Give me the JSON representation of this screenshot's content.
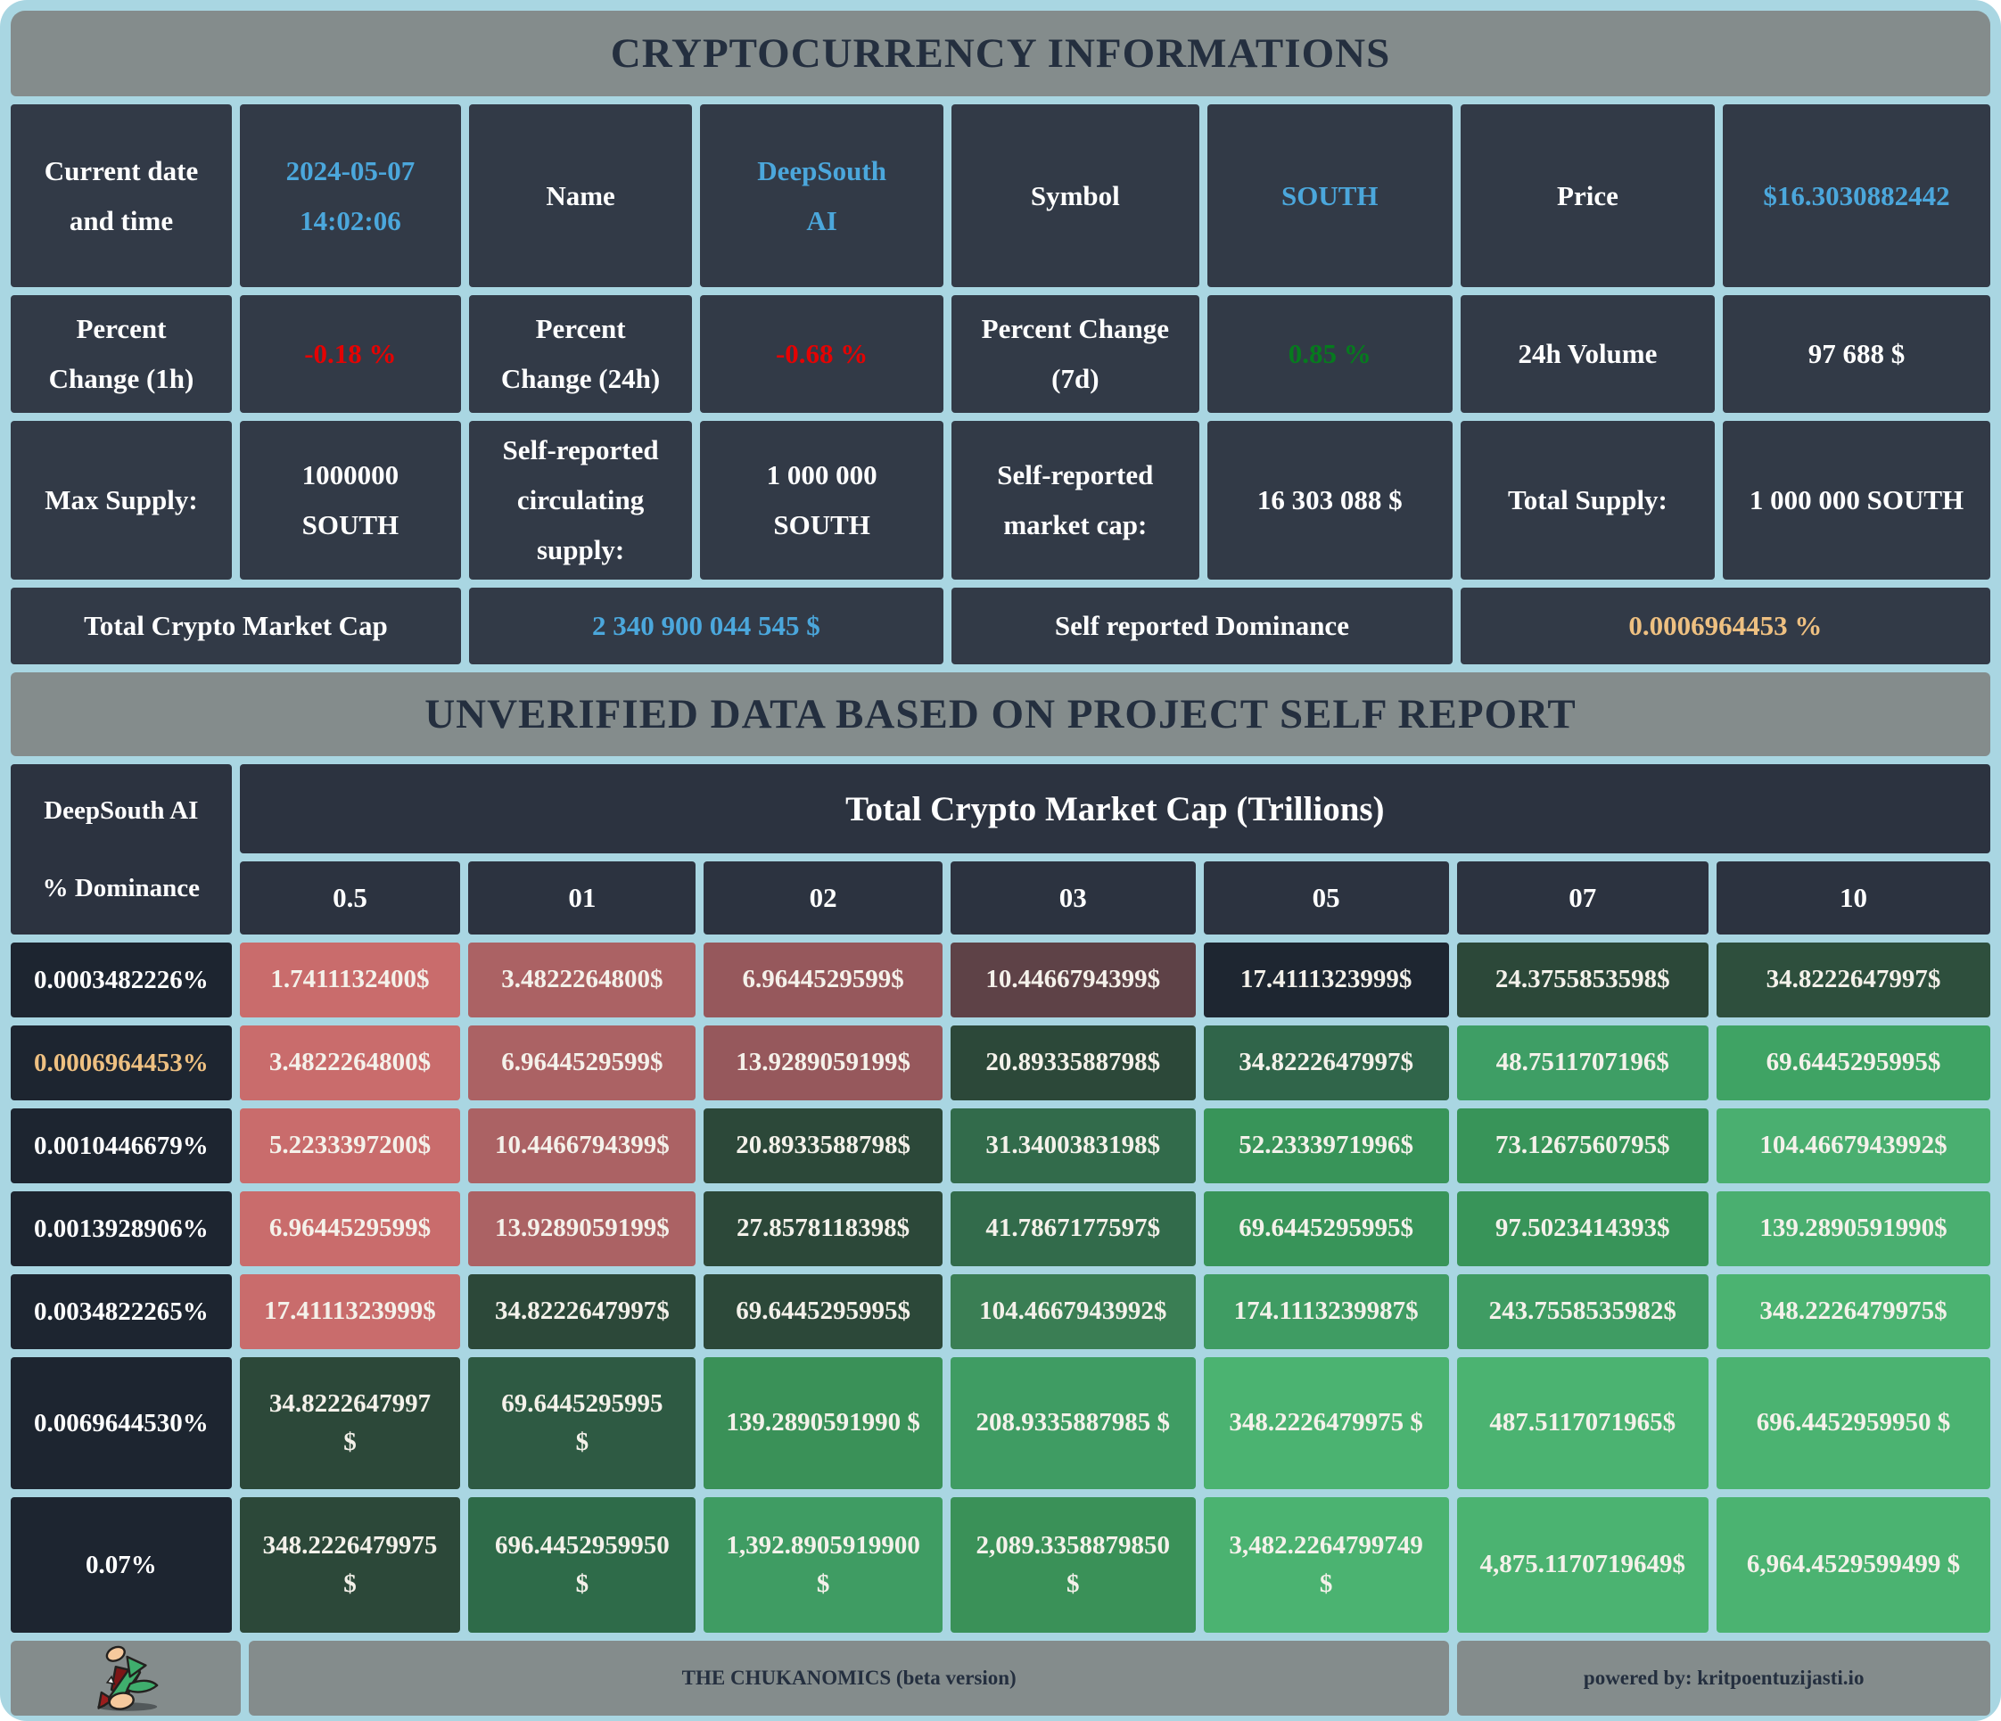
{
  "title": "CRYPTOCURRENCY INFORMATIONS",
  "banner": "UNVERIFIED DATA BASED ON PROJECT SELF REPORT",
  "colors": {
    "frame_border": "#a9d6e2",
    "header_gray": "#848c8c",
    "cell_dark": "#323a47",
    "matrix_label_dark": "#1d2530",
    "accent_blue": "#4ba7dc",
    "negative_red": "#e40303",
    "positive_green": "#067a1e",
    "dominance_orange": "#eec081"
  },
  "info_table": {
    "rows": [
      {
        "cells": [
          {
            "name": "current-datetime-label",
            "text": "Current date and time",
            "style": "label"
          },
          {
            "name": "current-datetime-value",
            "text": "2024-05-07\n14:02:06",
            "style": "blue"
          },
          {
            "name": "name-label",
            "text": "Name",
            "style": "label"
          },
          {
            "name": "name-value",
            "text": "DeepSouth\nAI",
            "style": "blue"
          },
          {
            "name": "symbol-label",
            "text": "Symbol",
            "style": "label"
          },
          {
            "name": "symbol-value",
            "text": "SOUTH",
            "style": "blue"
          },
          {
            "name": "price-label",
            "text": "Price",
            "style": "label"
          },
          {
            "name": "price-value",
            "text": "$16.3030882442",
            "style": "blue"
          }
        ]
      },
      {
        "cells": [
          {
            "name": "pct-1h-label",
            "text": "Percent\nChange (1h)",
            "style": "label"
          },
          {
            "name": "pct-1h-value",
            "text": "-0.18 %",
            "style": "red"
          },
          {
            "name": "pct-24h-label",
            "text": "Percent\nChange (24h)",
            "style": "label"
          },
          {
            "name": "pct-24h-value",
            "text": "-0.68 %",
            "style": "red"
          },
          {
            "name": "pct-7d-label",
            "text": "Percent Change\n(7d)",
            "style": "label"
          },
          {
            "name": "pct-7d-value",
            "text": "0.85 %",
            "style": "green"
          },
          {
            "name": "volume-label",
            "text": "24h Volume",
            "style": "label"
          },
          {
            "name": "volume-value",
            "text": "97 688 $",
            "style": "label"
          }
        ]
      },
      {
        "cells": [
          {
            "name": "max-supply-label",
            "text": "Max Supply:",
            "style": "label"
          },
          {
            "name": "max-supply-value",
            "text": "1000000\nSOUTH",
            "style": "label"
          },
          {
            "name": "circ-supply-label",
            "text": "Self-reported\ncirculating\nsupply:",
            "style": "label"
          },
          {
            "name": "circ-supply-value",
            "text": "1 000 000\nSOUTH",
            "style": "label"
          },
          {
            "name": "self-mcap-label",
            "text": "Self-reported\nmarket cap:",
            "style": "label"
          },
          {
            "name": "self-mcap-value",
            "text": "16 303 088 $",
            "style": "label"
          },
          {
            "name": "total-supply-label",
            "text": "Total Supply:",
            "style": "label"
          },
          {
            "name": "total-supply-value",
            "text": "1 000 000 SOUTH",
            "style": "label"
          }
        ]
      },
      {
        "cells": [
          {
            "name": "total-mcap-label",
            "text": "Total Crypto Market Cap",
            "style": "label",
            "span": 2
          },
          {
            "name": "total-mcap-value",
            "text": "2 340 900 044 545 $",
            "style": "blue",
            "span": 2
          },
          {
            "name": "self-dominance-label",
            "text": "Self reported Dominance",
            "style": "label",
            "span": 2
          },
          {
            "name": "self-dominance-value",
            "text": "0.0006964453 %",
            "style": "orange",
            "span": 2
          }
        ]
      }
    ]
  },
  "matrix": {
    "corner": "DeepSouth AI\n% Dominance",
    "header": "Total Crypto Market Cap (Trillions)",
    "columns": [
      "0.5",
      "01",
      "02",
      "03",
      "05",
      "07",
      "10"
    ],
    "rows": [
      {
        "label": "0.0003482226%",
        "label_color": "#ffffff",
        "cells": [
          {
            "text": "1.7411132400$",
            "bg": "#c96c6c"
          },
          {
            "text": "3.4822264800$",
            "bg": "#ab6264"
          },
          {
            "text": "6.9644529599$",
            "bg": "#96585c"
          },
          {
            "text": "10.4466794399$",
            "bg": "#5e4247"
          },
          {
            "text": "17.4111323999$",
            "bg": "#1e2631"
          },
          {
            "text": "24.3755853598$",
            "bg": "#2c4839"
          },
          {
            "text": "34.8222647997$",
            "bg": "#2e4f3d"
          }
        ]
      },
      {
        "label": "0.0006964453%",
        "label_color": "#eec081",
        "cells": [
          {
            "text": "3.4822264800$",
            "bg": "#c96c6c"
          },
          {
            "text": "6.9644529599$",
            "bg": "#ab6264"
          },
          {
            "text": "13.9289059199$",
            "bg": "#96585c"
          },
          {
            "text": "20.8933588798$",
            "bg": "#2c4839"
          },
          {
            "text": "34.8222647997$",
            "bg": "#30654a"
          },
          {
            "text": "48.7511707196$",
            "bg": "#3e9e65"
          },
          {
            "text": "69.6445295995$",
            "bg": "#3fa364"
          }
        ]
      },
      {
        "label": "0.0010446679%",
        "label_color": "#ffffff",
        "cells": [
          {
            "text": "5.2233397200$",
            "bg": "#c96c6c"
          },
          {
            "text": "10.4466794399$",
            "bg": "#ab6264"
          },
          {
            "text": "20.8933588798$",
            "bg": "#2c4839"
          },
          {
            "text": "31.3400383198$",
            "bg": "#326b4b"
          },
          {
            "text": "52.2333971996$",
            "bg": "#389459"
          },
          {
            "text": "73.1267560795$",
            "bg": "#389459"
          },
          {
            "text": "104.4667943992$",
            "bg": "#4aaf70"
          }
        ]
      },
      {
        "label": "0.0013928906%",
        "label_color": "#ffffff",
        "cells": [
          {
            "text": "6.9644529599$",
            "bg": "#c96c6c"
          },
          {
            "text": "13.9289059199$",
            "bg": "#ab6264"
          },
          {
            "text": "27.8578118398$",
            "bg": "#2c4839"
          },
          {
            "text": "41.7867177597$",
            "bg": "#326b4b"
          },
          {
            "text": "69.6445295995$",
            "bg": "#389459"
          },
          {
            "text": "97.5023414393$",
            "bg": "#389459"
          },
          {
            "text": "139.2890591990$",
            "bg": "#4aaf70"
          }
        ]
      },
      {
        "label": "0.0034822265%",
        "label_color": "#ffffff",
        "cells": [
          {
            "text": "17.4111323999$",
            "bg": "#c96c6c"
          },
          {
            "text": "34.8222647997$",
            "bg": "#2c4839"
          },
          {
            "text": "69.6445295995$",
            "bg": "#2c4839"
          },
          {
            "text": "104.4667943992$",
            "bg": "#3a7e54"
          },
          {
            "text": "174.1113239987$",
            "bg": "#3f9c63"
          },
          {
            "text": "243.7558535982$",
            "bg": "#3f9c63"
          },
          {
            "text": "348.2226479975$",
            "bg": "#4bb371"
          }
        ]
      },
      {
        "label": "0.0069644530%",
        "label_color": "#ffffff",
        "cells": [
          {
            "text": "34.8222647997\n$",
            "bg": "#2c4839"
          },
          {
            "text": "69.6445295995\n$",
            "bg": "#2e5a43"
          },
          {
            "text": "139.2890591990 $",
            "bg": "#3a9158"
          },
          {
            "text": "208.9335887985 $",
            "bg": "#3f9c63"
          },
          {
            "text": "348.2226479975 $",
            "bg": "#4bb371"
          },
          {
            "text": "487.5117071965$",
            "bg": "#4bb371"
          },
          {
            "text": "696.4452959950 $",
            "bg": "#4bb371"
          }
        ]
      },
      {
        "label": "0.07%",
        "label_color": "#ffffff",
        "cells": [
          {
            "text": "348.2226479975\n$",
            "bg": "#2c4839"
          },
          {
            "text": "696.4452959950\n$",
            "bg": "#2e6b49"
          },
          {
            "text": "1,392.8905919900\n$",
            "bg": "#3f9c63"
          },
          {
            "text": "2,089.3358879850\n$",
            "bg": "#3a9158"
          },
          {
            "text": "3,482.2264799749\n$",
            "bg": "#4bb371"
          },
          {
            "text": "4,875.1170719649$",
            "bg": "#4bb371"
          },
          {
            "text": "6,964.4529599499 $",
            "bg": "#4bb371"
          }
        ]
      }
    ]
  },
  "footer": {
    "logo_icon": "red-green-trend-arrows-mascot-icon",
    "brand": "THE CHUKANOMICS (beta version)",
    "powered_by": "powered by: kritpoentuzijasti.io"
  },
  "chart_data": [
    {
      "type": "table",
      "title": "CRYPTOCURRENCY INFORMATIONS",
      "rows": [
        [
          "Current date and time",
          "2024-05-07 14:02:06"
        ],
        [
          "Name",
          "DeepSouth AI"
        ],
        [
          "Symbol",
          "SOUTH"
        ],
        [
          "Price",
          "$16.3030882442"
        ],
        [
          "Percent Change (1h)",
          "-0.18 %"
        ],
        [
          "Percent Change (24h)",
          "-0.68 %"
        ],
        [
          "Percent Change (7d)",
          "0.85 %"
        ],
        [
          "24h Volume",
          "97 688 $"
        ],
        [
          "Max Supply:",
          "1000000 SOUTH"
        ],
        [
          "Self-reported circulating supply:",
          "1 000 000 SOUTH"
        ],
        [
          "Self-reported market cap:",
          "16 303 088 $"
        ],
        [
          "Total Supply:",
          "1 000 000 SOUTH"
        ],
        [
          "Total Crypto Market Cap",
          "2 340 900 044 545 $"
        ],
        [
          "Self reported Dominance",
          "0.0006964453 %"
        ]
      ]
    },
    {
      "type": "heatmap",
      "title": "Total Crypto Market Cap (Trillions)",
      "row_axis_label": "DeepSouth AI % Dominance",
      "columns": [
        "0.5",
        "01",
        "02",
        "03",
        "05",
        "07",
        "10"
      ],
      "row_labels": [
        "0.0003482226%",
        "0.0006964453%",
        "0.0010446679%",
        "0.0013928906%",
        "0.0034822265%",
        "0.0069644530%",
        "0.07%"
      ],
      "values": [
        [
          1.74111324,
          3.48222648,
          6.9644529599,
          10.4466794399,
          17.4111323999,
          24.3755853598,
          34.8222647997
        ],
        [
          3.48222648,
          6.9644529599,
          13.9289059199,
          20.8933588798,
          34.8222647997,
          48.7511707196,
          69.6445295995
        ],
        [
          5.22333972,
          10.4466794399,
          20.8933588798,
          31.3400383198,
          52.2333971996,
          73.1267560795,
          104.4667943992
        ],
        [
          6.9644529599,
          13.9289059199,
          27.8578118398,
          41.7867177597,
          69.6445295995,
          97.5023414393,
          139.289059199
        ],
        [
          17.4111323999,
          34.8222647997,
          69.6445295995,
          104.4667943992,
          174.1113239987,
          243.7558535982,
          348.2226479975
        ],
        [
          34.8222647997,
          69.6445295995,
          139.289059199,
          208.9335887985,
          348.2226479975,
          487.5117071965,
          696.445295995
        ],
        [
          348.2226479975,
          696.445295995,
          1392.89059199,
          2089.335887985,
          3482.2264799749,
          4875.1170719649,
          6964.4529599499
        ]
      ],
      "legend": "red = below current market cap scenario, green = above; brightness increases with value"
    }
  ]
}
